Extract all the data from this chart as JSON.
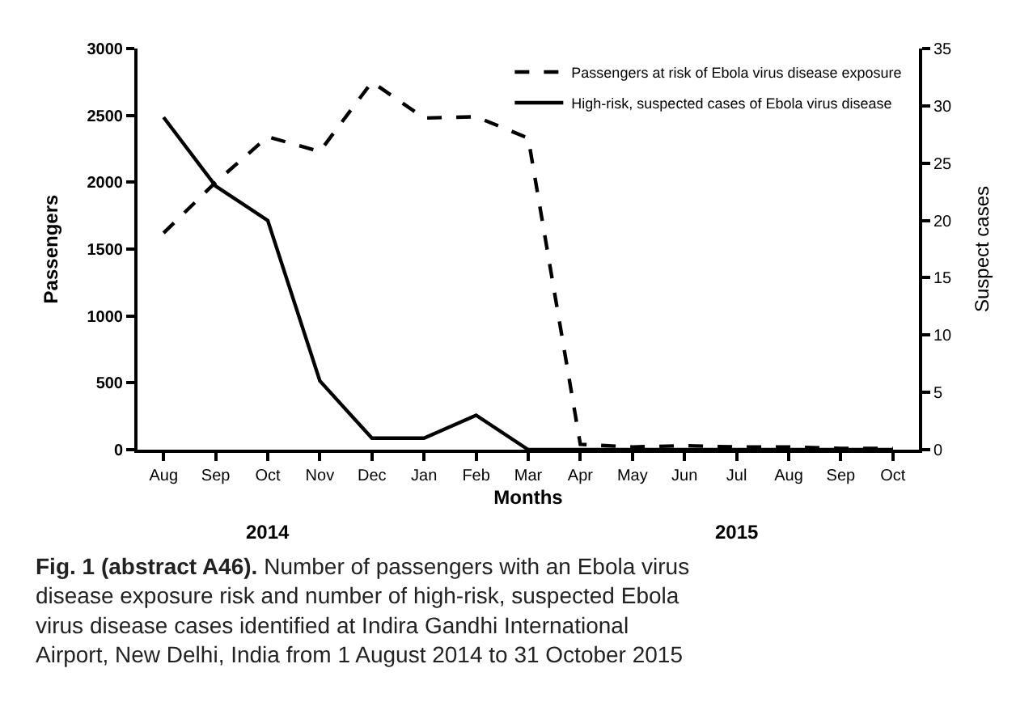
{
  "chart_data": {
    "type": "line",
    "xlabel": "Months",
    "ylabel": "Passengers",
    "y2label": "Suspect cases",
    "categories": [
      "Aug",
      "Sep",
      "Oct",
      "Nov",
      "Dec",
      "Jan",
      "Feb",
      "Mar",
      "Apr",
      "May",
      "Jun",
      "Jul",
      "Aug",
      "Sep",
      "Oct"
    ],
    "series": [
      {
        "name": "Passengers at risk of Ebola virus disease exposure",
        "color": "#000000",
        "line_style": "dashed",
        "values": [
          1620,
          2000,
          2340,
          2230,
          2750,
          2480,
          2490,
          2330,
          40,
          20,
          30,
          20,
          20,
          10,
          10
        ]
      },
      {
        "name": "High-risk, suspected cases of Ebola virus disease",
        "color": "#000000",
        "line_style": "solid",
        "axis": "y2",
        "values": [
          29,
          23,
          20,
          6,
          1,
          1,
          3,
          0,
          0,
          0,
          0,
          0,
          0,
          0,
          0
        ]
      }
    ],
    "ylim": [
      0,
      3000
    ],
    "yticks": [
      0,
      500,
      1000,
      1500,
      2000,
      2500,
      3000
    ],
    "y2lim": [
      0,
      35
    ],
    "y2ticks": [
      0,
      5,
      10,
      15,
      20,
      25,
      30,
      35
    ],
    "legend": "top right",
    "marker": "none",
    "annotations": [
      "2014",
      "2015",
      "Fig. 1 (abstract A46).",
      "Number of passengers with an Ebola virus disease exposure risk and number of high-risk, suspected Ebola virus disease cases identified at Indira Gandhi International Airport, New Delhi, India from 1 August 2014 to 31 October 2015"
    ]
  }
}
